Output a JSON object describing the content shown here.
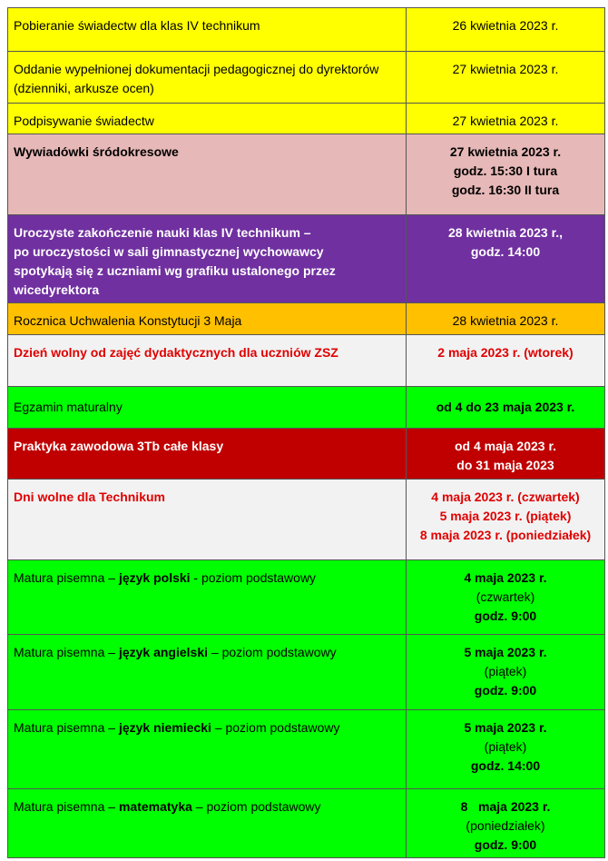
{
  "table": {
    "rows": [
      {
        "task": [
          "Pobieranie świadectw dla klas IV technikum"
        ],
        "date": [
          "26 kwietnia 2023 r."
        ]
      },
      {
        "task": [
          "Oddanie wypełnionej dokumentacji pedagogicznej do dyrektorów (dzienniki, arkusze ocen)"
        ],
        "date": [
          "27 kwietnia 2023 r."
        ]
      },
      {
        "task": [
          "Podpisywanie świadectw"
        ],
        "date": [
          "27 kwietnia 2023 r."
        ]
      },
      {
        "task": [
          "Wywiadówki śródokresowe"
        ],
        "date": [
          "27 kwietnia 2023 r.",
          "godz. 15:30 I tura",
          "godz. 16:30 II tura"
        ]
      },
      {
        "task": [
          "Uroczyste zakończenie nauki klas IV technikum  –",
          "po uroczystości w sali gimnastycznej wychowawcy",
          "spotykają się z uczniami wg grafiku ustalonego przez",
          "wicedyrektora"
        ],
        "date": [
          "28 kwietnia 2023 r.,",
          "godz. 14:00"
        ]
      },
      {
        "task": [
          "Rocznica Uchwalenia Konstytucji 3 Maja"
        ],
        "date": [
          "28 kwietnia 2023 r."
        ]
      },
      {
        "task": [
          "Dzień wolny od zajęć dydaktycznych dla uczniów ZSZ"
        ],
        "date": [
          "2 maja 2023 r. (wtorek)"
        ]
      },
      {
        "task": [
          "Egzamin maturalny"
        ],
        "date": [
          "od 4 do 23 maja 2023 r."
        ]
      },
      {
        "task": [
          "Praktyka zawodowa 3Tb całe klasy"
        ],
        "date": [
          "od 4 maja 2023 r.",
          "do 31 maja 2023"
        ]
      },
      {
        "task": [
          "Dni wolne dla Technikum"
        ],
        "date": [
          "4 maja 2023 r. (czwartek)",
          "5 maja 2023 r. (piątek)",
          "8 maja 2023 r. (poniedziałek)"
        ]
      },
      {
        "task": {
          "before": "Matura pisemna – ",
          "bold": "język polski",
          "after": " - poziom podstawowy"
        },
        "date": [
          "4 maja 2023 r.",
          "(czwartek)",
          "godz. 9:00"
        ]
      },
      {
        "task": {
          "before": "Matura pisemna – ",
          "bold": "język angielski",
          "after": " – poziom podstawowy"
        },
        "date": [
          "5 maja 2023 r.",
          "(piątek)",
          "godz. 9:00"
        ]
      },
      {
        "task": {
          "before": "Matura pisemna – ",
          "bold": "język niemiecki",
          "after": " – poziom podstawowy"
        },
        "date": [
          "5 maja 2023 r.",
          "(piątek)",
          "godz. 14:00"
        ]
      },
      {
        "task": {
          "before": "Matura pisemna – ",
          "bold": "matematyka",
          "after": " – poziom podstawowy"
        },
        "date": [
          "8   maja 2023 r.",
          "(poniedziałek)",
          "godz. 9:00"
        ]
      }
    ]
  }
}
